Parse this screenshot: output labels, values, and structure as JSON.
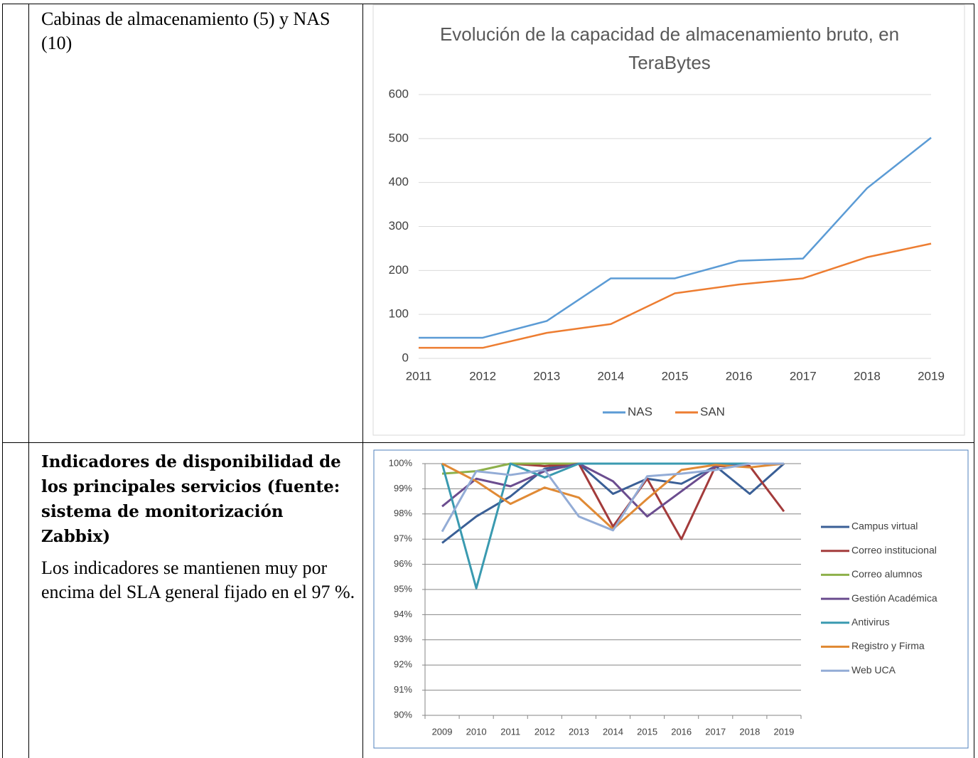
{
  "table": {
    "rows": [
      [
        "Cabinas de almacenamiento (5) y NAS (10)"
      ],
      [
        "Indicadores de disponibilidad de los principales servicios (fuente: sistema de monitorización Zabbix)",
        "Los indicadores se mantienen muy por encima del SLA general fijado en el 97 %."
      ]
    ]
  },
  "chart_data": [
    {
      "type": "line",
      "title": "Evolución de la capacidad de almacenamiento bruto, en TeraBytes",
      "categories": [
        "2011",
        "2012",
        "2013",
        "2014",
        "2015",
        "2016",
        "2017",
        "2018",
        "2019"
      ],
      "ylim": [
        0,
        600
      ],
      "yticks": [
        0,
        100,
        200,
        300,
        400,
        500,
        600
      ],
      "grid": true,
      "legend": "bottom",
      "series": [
        {
          "name": "NAS",
          "color": "#5b9bd5",
          "values": [
            47,
            47,
            85,
            182,
            182,
            222,
            227,
            387,
            502
          ]
        },
        {
          "name": "SAN",
          "color": "#ed7d31",
          "values": [
            24,
            24,
            58,
            78,
            148,
            168,
            182,
            230,
            261
          ]
        }
      ]
    },
    {
      "type": "line",
      "categories": [
        "2009",
        "2010",
        "2011",
        "2012",
        "2013",
        "2014",
        "2015",
        "2016",
        "2017",
        "2018",
        "2019"
      ],
      "ylim": [
        90,
        100
      ],
      "yticks": [
        {
          "value": 90,
          "label": "90%"
        },
        {
          "value": 91,
          "label": "91%"
        },
        {
          "value": 92,
          "label": "92%"
        },
        {
          "value": 93,
          "label": "93%"
        },
        {
          "value": 94,
          "label": "94%"
        },
        {
          "value": 95,
          "label": "95%"
        },
        {
          "value": 96,
          "label": "96%"
        },
        {
          "value": 97,
          "label": "97%"
        },
        {
          "value": 98,
          "label": "98%"
        },
        {
          "value": 99,
          "label": "99%"
        },
        {
          "value": 100,
          "label": "100%"
        }
      ],
      "grid": true,
      "legend": "right",
      "series": [
        {
          "name": "Campus virtual",
          "color": "#3a5f96",
          "values": [
            96.85,
            97.9,
            98.7,
            99.8,
            100,
            98.8,
            99.4,
            99.2,
            99.9,
            98.8,
            100
          ]
        },
        {
          "name": "Correo institucional",
          "color": "#a33b3b",
          "values": [
            null,
            null,
            100,
            99.9,
            100,
            97.5,
            99.4,
            97.0,
            99.9,
            99.9,
            98.1
          ]
        },
        {
          "name": "Correo alumnos",
          "color": "#8db04a",
          "values": [
            99.6,
            99.7,
            100,
            100,
            100,
            100,
            100,
            100,
            100,
            100,
            100
          ]
        },
        {
          "name": "Gestión Académica",
          "color": "#6b4d8f",
          "values": [
            98.3,
            99.4,
            99.1,
            99.7,
            100,
            99.3,
            97.9,
            98.9,
            99.9,
            100,
            100
          ]
        },
        {
          "name": "Antivirus",
          "color": "#3a9ab0",
          "values": [
            100,
            95.05,
            100,
            99.45,
            100,
            100,
            100,
            100,
            100,
            100,
            100
          ]
        },
        {
          "name": "Registro y Firma",
          "color": "#e08a35",
          "values": [
            100,
            99.3,
            98.4,
            99.05,
            98.65,
            97.4,
            98.6,
            99.75,
            99.95,
            99.85,
            100
          ]
        },
        {
          "name": "Web UCA",
          "color": "#93acd6",
          "values": [
            97.3,
            99.7,
            99.55,
            99.75,
            97.9,
            97.35,
            99.5,
            99.6,
            99.75,
            100,
            100
          ]
        }
      ]
    }
  ]
}
